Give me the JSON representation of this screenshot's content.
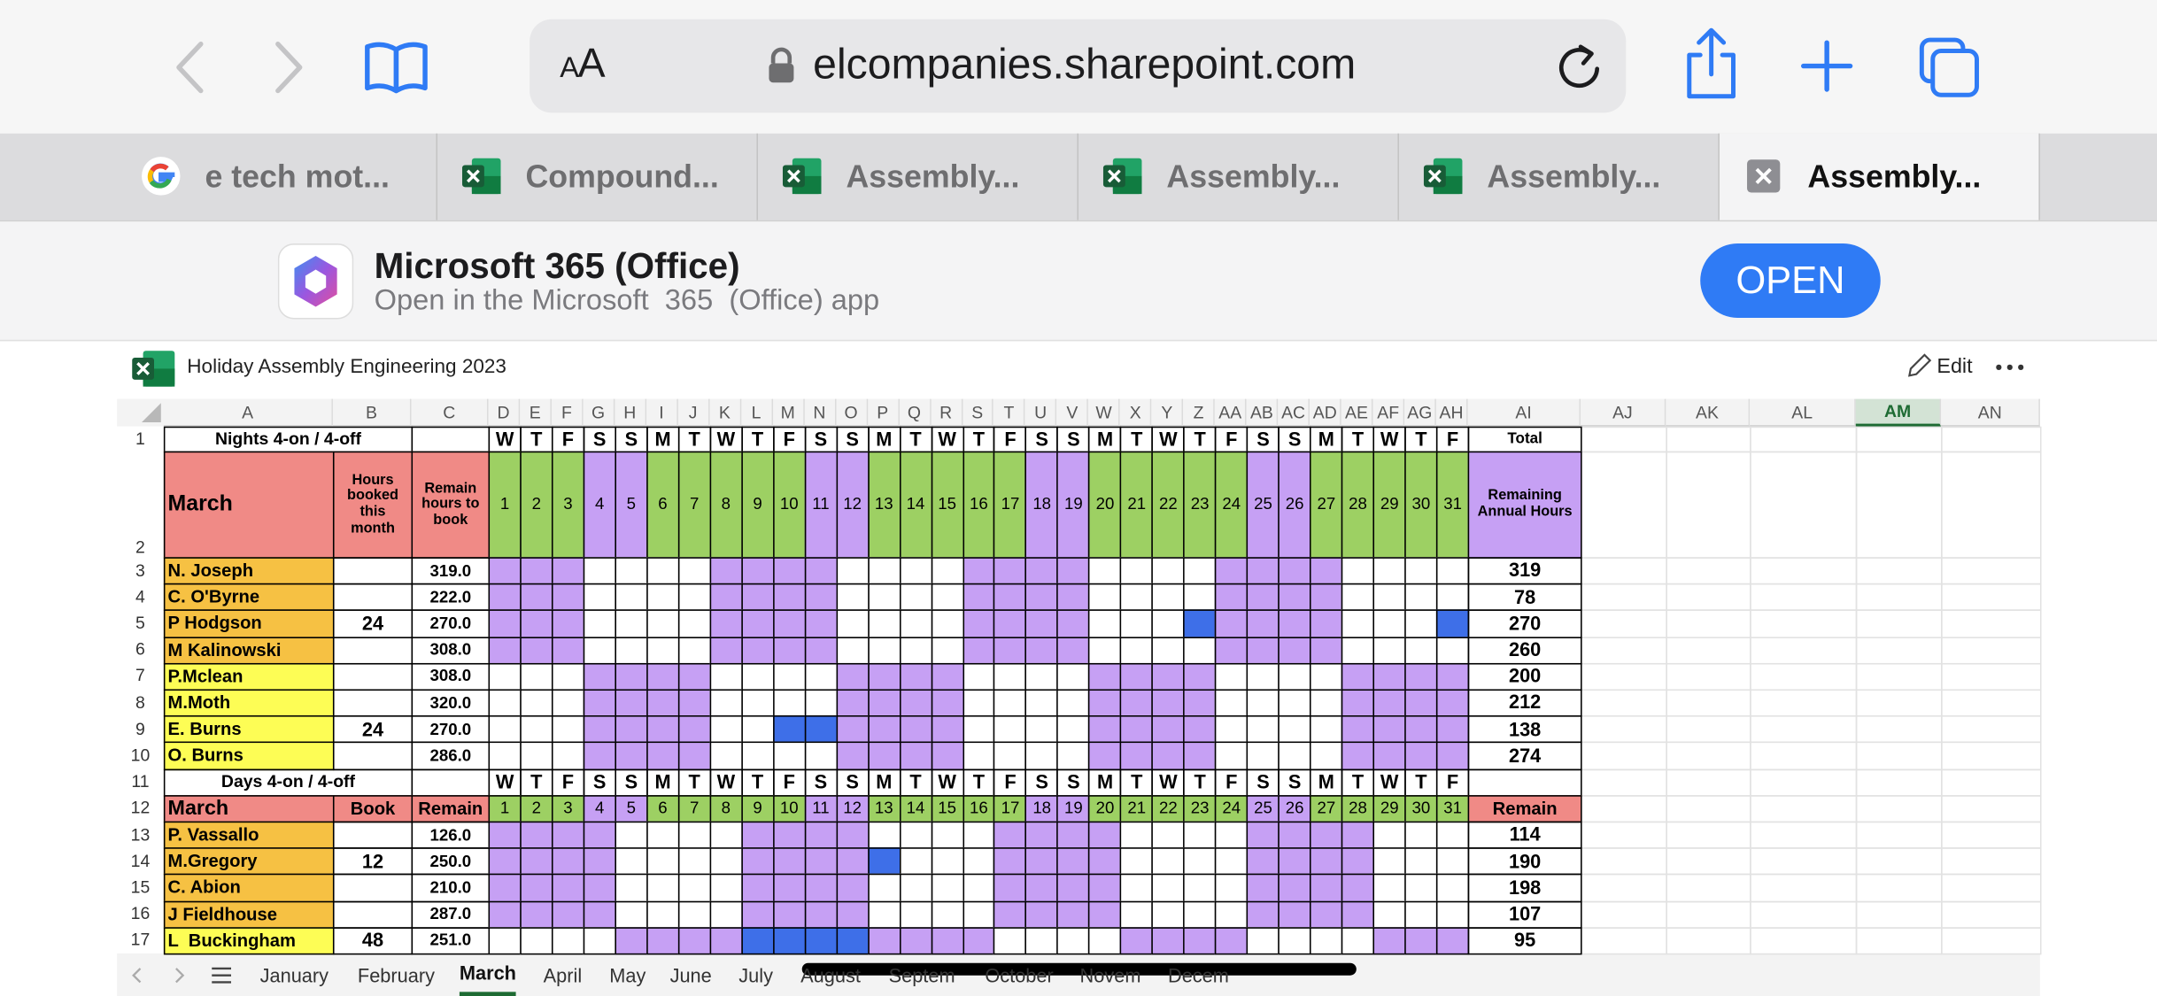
{
  "browser": {
    "text_size": "AA",
    "url": "elcompanies.sharepoint.com",
    "tabs": [
      "e tech mot...",
      "Compound...",
      "Assembly...",
      "Assembly...",
      "Assembly...",
      "Assembly..."
    ]
  },
  "app_banner": {
    "title": "Microsoft 365 (Office)",
    "subtitle": "Open in the Microsoft  365  (Office) app",
    "button": "OPEN"
  },
  "workbook": {
    "title": "Holiday Assembly Engineering 2023",
    "edit": "Edit"
  },
  "sheet": {
    "columns": [
      "A",
      "B",
      "C",
      "D",
      "E",
      "F",
      "G",
      "H",
      "I",
      "J",
      "K",
      "L",
      "M",
      "N",
      "O",
      "P",
      "Q",
      "R",
      "S",
      "T",
      "U",
      "V",
      "W",
      "X",
      "Y",
      "Z",
      "AA",
      "AB",
      "AC",
      "AD",
      "AE",
      "AF",
      "AG",
      "AH",
      "AI",
      "AJ",
      "AK",
      "AL",
      "AM",
      "AN"
    ],
    "rows": [
      1,
      2,
      3,
      4,
      5,
      6,
      7,
      8,
      9,
      10,
      11,
      12,
      13,
      14,
      15,
      16,
      17
    ],
    "weekdays": [
      "W",
      "T",
      "F",
      "S",
      "S",
      "M",
      "T",
      "W",
      "T",
      "F",
      "S",
      "S",
      "M",
      "T",
      "W",
      "T",
      "F",
      "S",
      "S",
      "M",
      "T",
      "W",
      "T",
      "F",
      "S",
      "S",
      "M",
      "T",
      "W",
      "T",
      "F"
    ],
    "dates": [
      1,
      2,
      3,
      4,
      5,
      6,
      7,
      8,
      9,
      10,
      11,
      12,
      13,
      14,
      15,
      16,
      17,
      18,
      19,
      20,
      21,
      22,
      23,
      24,
      25,
      26,
      27,
      28,
      29,
      30,
      31
    ],
    "nights": {
      "label": "Nights 4-on / 4-off",
      "total": "Total",
      "month": "March",
      "booked": "Hours booked this month",
      "remain": "Remain hours to book",
      "annual": "Remaining Annual Hours",
      "staff": [
        {
          "name": "N. Joseph",
          "booked": null,
          "remain": "319.0",
          "annual": 319
        },
        {
          "name": "C. O'Byrne",
          "booked": null,
          "remain": "222.0",
          "annual": 78
        },
        {
          "name": "P Hodgson",
          "booked": 24,
          "remain": "270.0",
          "annual": 270
        },
        {
          "name": "M Kalinowski",
          "booked": null,
          "remain": "308.0",
          "annual": 260
        },
        {
          "name": "P.Mclean",
          "booked": null,
          "remain": "308.0",
          "annual": 200
        },
        {
          "name": "M.Moth",
          "booked": null,
          "remain": "320.0",
          "annual": 212
        },
        {
          "name": "E. Burns",
          "booked": 24,
          "remain": "270.0",
          "annual": 138
        },
        {
          "name": "O. Burns",
          "booked": null,
          "remain": "286.0",
          "annual": 274
        }
      ]
    },
    "days": {
      "label": "Days 4-on / 4-off",
      "month": "March",
      "booked": "Book",
      "remain": "Remain",
      "annual": "Remain",
      "staff": [
        {
          "name": "P. Vassallo",
          "booked": null,
          "remain": "126.0",
          "annual": 114
        },
        {
          "name": "M.Gregory",
          "booked": 12,
          "remain": "250.0",
          "annual": 190
        },
        {
          "name": "C. Abion",
          "booked": null,
          "remain": "210.0",
          "annual": 198
        },
        {
          "name": "J Fieldhouse",
          "booked": null,
          "remain": "287.0",
          "annual": 107
        },
        {
          "name": "L  Buckingham",
          "booked": 48,
          "remain": "251.0",
          "annual": 95
        }
      ]
    }
  },
  "sheet_tabs": [
    "January",
    "February",
    "March",
    "April",
    "May",
    "June",
    "July",
    "August",
    "Septem",
    "October",
    "Novem",
    "Decem"
  ]
}
